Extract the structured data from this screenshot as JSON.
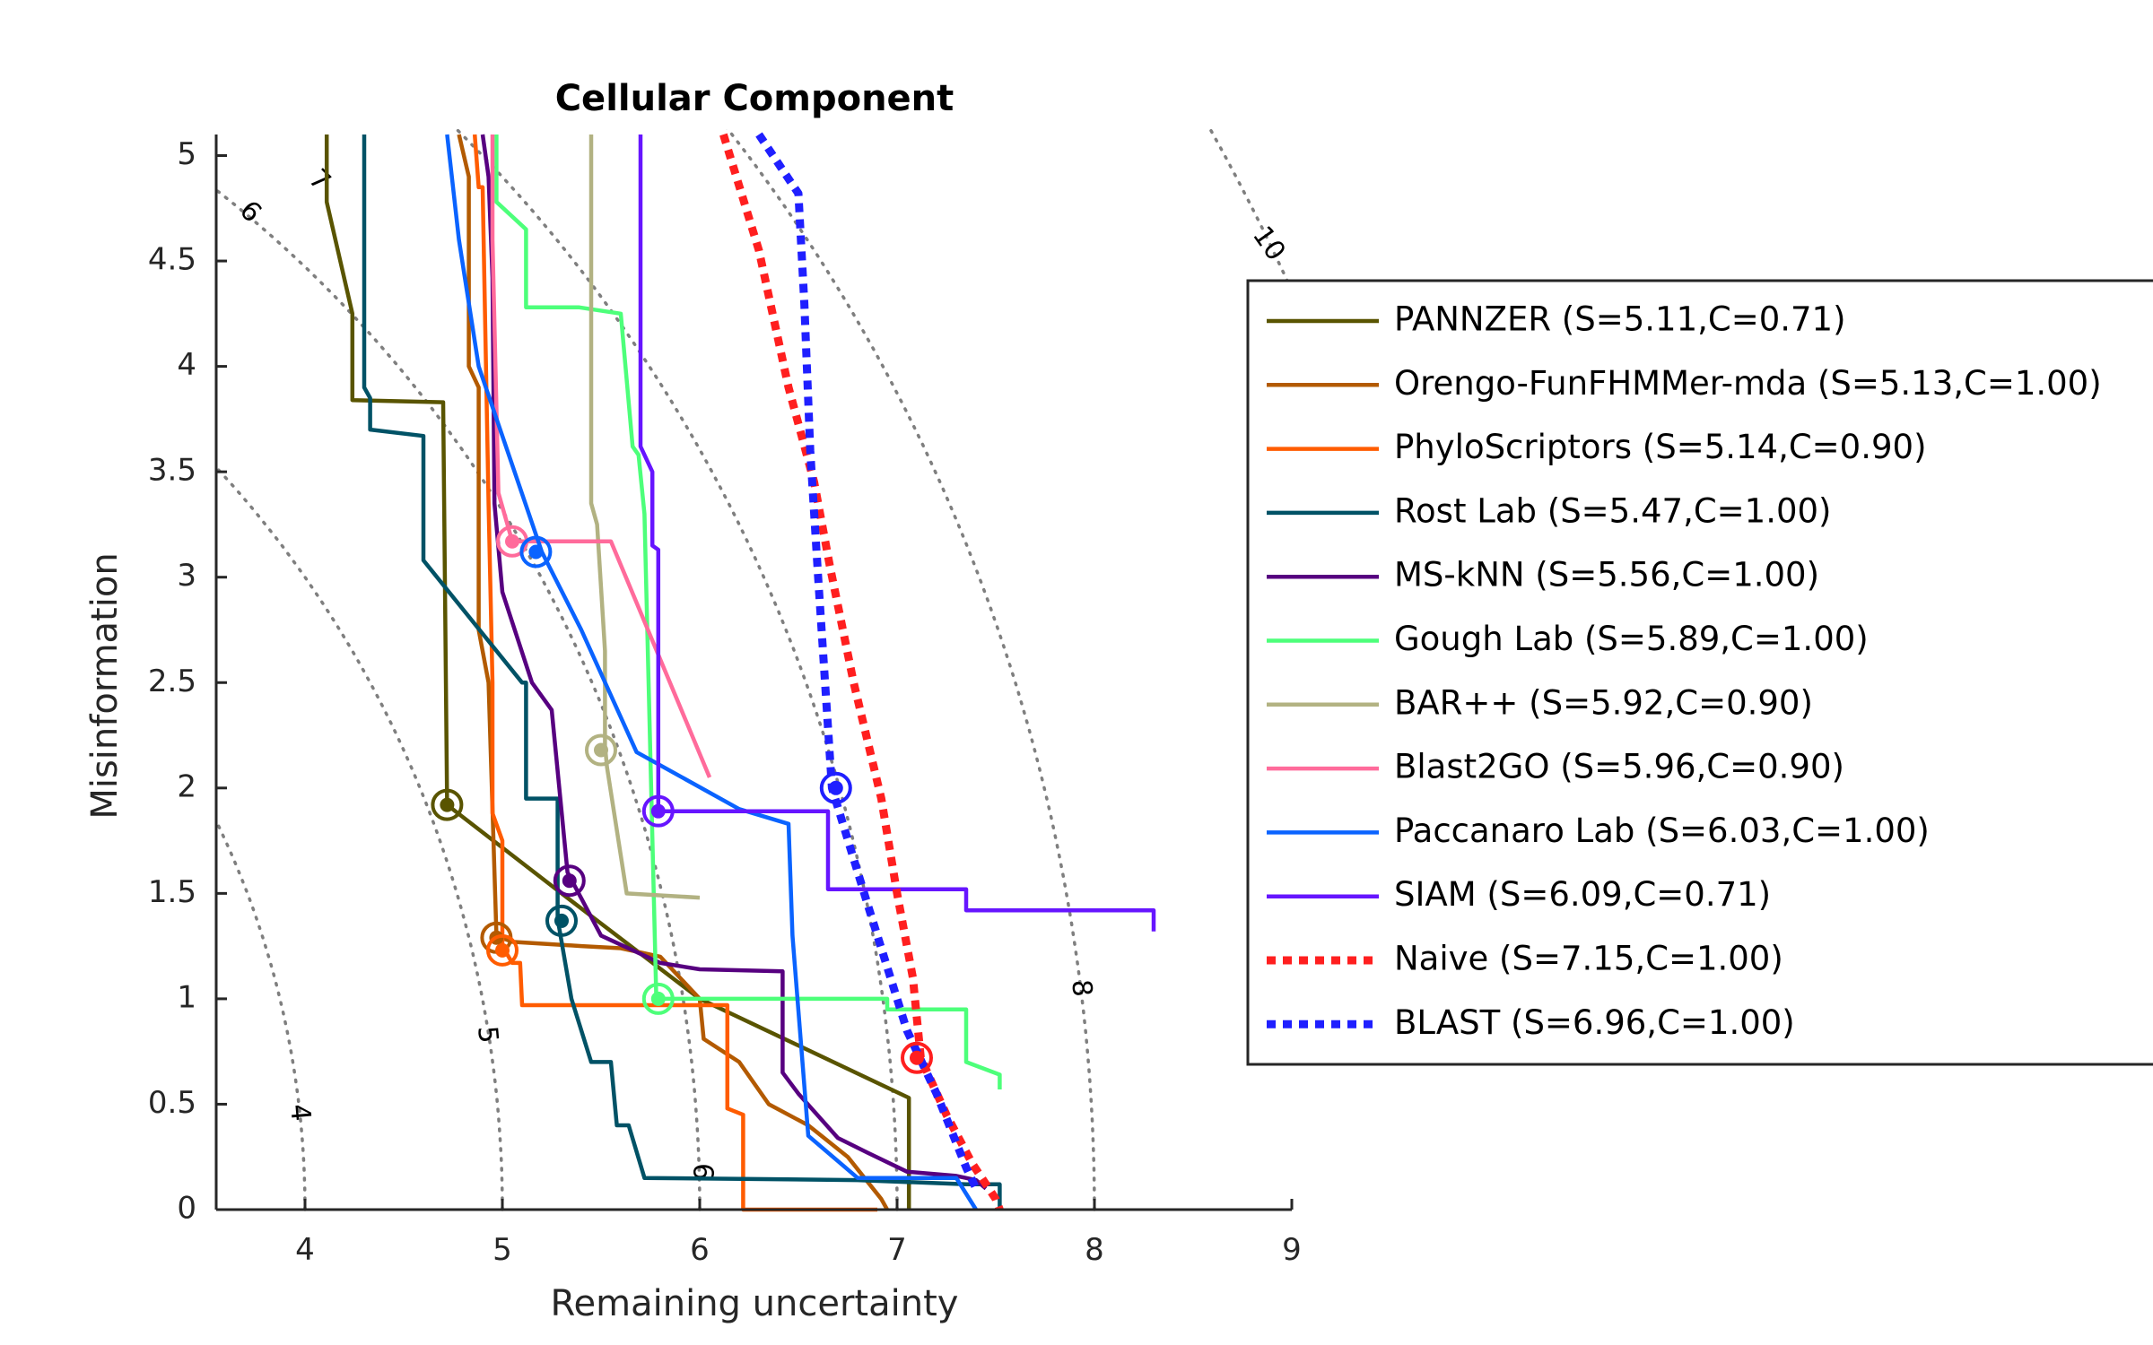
{
  "chart_data": {
    "type": "line",
    "title": "Cellular Component",
    "xlabel": "Remaining uncertainty",
    "ylabel": "Misinformation",
    "xlim": [
      3.55,
      9.0
    ],
    "ylim": [
      0,
      5.1
    ],
    "xticks": [
      4,
      5,
      6,
      7,
      8,
      9
    ],
    "yticks": [
      0,
      0.5,
      1,
      1.5,
      2,
      2.5,
      3,
      3.5,
      4,
      4.5,
      5
    ],
    "xtick_labels": [
      "4",
      "5",
      "6",
      "7",
      "8",
      "9"
    ],
    "ytick_labels": [
      "0",
      "0.5",
      "1",
      "1.5",
      "2",
      "2.5",
      "3",
      "3.5",
      "4",
      "4.5",
      "5"
    ],
    "grid": false,
    "legend_position": "right",
    "contours": [
      {
        "level": 4,
        "label": "4"
      },
      {
        "level": 5,
        "label": "5"
      },
      {
        "level": 6,
        "label": "6"
      },
      {
        "level": 7,
        "label": "7"
      },
      {
        "level": 8,
        "label": "8"
      },
      {
        "level": 10,
        "label": "10"
      }
    ],
    "contour_labels": [
      {
        "label": "6",
        "x": 3.72,
        "y": 4.73,
        "rot": 45
      },
      {
        "label": "7",
        "x": 4.07,
        "y": 4.88,
        "rot": 45
      },
      {
        "label": "10",
        "x": 8.88,
        "y": 4.58,
        "rot": 55
      },
      {
        "label": "8",
        "x": 7.93,
        "y": 1.05,
        "rot": 85
      },
      {
        "label": "5",
        "x": 4.92,
        "y": 0.83,
        "rot": 85
      },
      {
        "label": "4",
        "x": 3.97,
        "y": 0.46,
        "rot": 85
      },
      {
        "label": "6",
        "x": 6.01,
        "y": 0.18,
        "rot": 90
      }
    ],
    "series": [
      {
        "name": "PANNZER (S=5.11,C=0.71)",
        "color": "#595400",
        "style": "solid",
        "points": [
          [
            4.11,
            5.1
          ],
          [
            4.11,
            4.78
          ],
          [
            4.24,
            4.25
          ],
          [
            4.24,
            3.84
          ],
          [
            4.7,
            3.83
          ],
          [
            4.72,
            1.92
          ],
          [
            5.3,
            1.5
          ],
          [
            6.0,
            1.0
          ],
          [
            7.06,
            0.53
          ],
          [
            7.06,
            0
          ]
        ],
        "marker": [
          4.72,
          1.92
        ]
      },
      {
        "name": "Orengo-FunFHMMer-mda (S=5.13,C=1.00)",
        "color": "#b35a00",
        "style": "solid",
        "points": [
          [
            4.78,
            5.1
          ],
          [
            4.83,
            4.9
          ],
          [
            4.83,
            4.0
          ],
          [
            4.88,
            3.9
          ],
          [
            4.88,
            2.75
          ],
          [
            4.93,
            2.5
          ],
          [
            4.97,
            1.3
          ],
          [
            5.05,
            1.27
          ],
          [
            5.4,
            1.25
          ],
          [
            5.6,
            1.24
          ],
          [
            5.8,
            1.2
          ],
          [
            6.0,
            1.0
          ],
          [
            6.02,
            0.81
          ],
          [
            6.2,
            0.7
          ],
          [
            6.35,
            0.5
          ],
          [
            6.55,
            0.4
          ],
          [
            6.75,
            0.25
          ],
          [
            6.92,
            0.05
          ],
          [
            6.95,
            0
          ]
        ],
        "marker": [
          4.97,
          1.29
        ]
      },
      {
        "name": "PhyloScriptors (S=5.14,C=0.90)",
        "color": "#ff5c00",
        "style": "solid",
        "points": [
          [
            4.86,
            5.1
          ],
          [
            4.88,
            4.85
          ],
          [
            4.9,
            4.85
          ],
          [
            4.93,
            3.35
          ],
          [
            4.95,
            2.5
          ],
          [
            4.95,
            1.88
          ],
          [
            5.0,
            1.75
          ],
          [
            5.0,
            1.25
          ],
          [
            5.05,
            1.17
          ],
          [
            5.09,
            1.17
          ],
          [
            5.1,
            0.97
          ],
          [
            6.14,
            0.97
          ],
          [
            6.14,
            0.48
          ],
          [
            6.22,
            0.45
          ],
          [
            6.22,
            0
          ],
          [
            6.9,
            0
          ]
        ],
        "marker": [
          5.0,
          1.23
        ]
      },
      {
        "name": "Rost Lab (S=5.47,C=1.00)",
        "color": "#005266",
        "style": "solid",
        "points": [
          [
            4.3,
            5.1
          ],
          [
            4.3,
            3.9
          ],
          [
            4.33,
            3.85
          ],
          [
            4.33,
            3.7
          ],
          [
            4.6,
            3.67
          ],
          [
            4.6,
            3.08
          ],
          [
            5.1,
            2.5
          ],
          [
            5.12,
            2.5
          ],
          [
            5.12,
            1.95
          ],
          [
            5.28,
            1.95
          ],
          [
            5.28,
            1.38
          ],
          [
            5.35,
            1.0
          ],
          [
            5.45,
            0.7
          ],
          [
            5.55,
            0.7
          ],
          [
            5.58,
            0.4
          ],
          [
            5.64,
            0.4
          ],
          [
            5.72,
            0.15
          ],
          [
            6.8,
            0.14
          ],
          [
            7.35,
            0.12
          ],
          [
            7.52,
            0.12
          ],
          [
            7.52,
            0
          ]
        ],
        "marker": [
          5.3,
          1.37
        ]
      },
      {
        "name": "MS-kNN (S=5.56,C=1.00)",
        "color": "#570080",
        "style": "solid",
        "points": [
          [
            4.9,
            5.1
          ],
          [
            4.93,
            4.9
          ],
          [
            4.95,
            4.42
          ],
          [
            4.96,
            3.35
          ],
          [
            5.0,
            2.93
          ],
          [
            5.15,
            2.5
          ],
          [
            5.25,
            2.37
          ],
          [
            5.33,
            1.6
          ],
          [
            5.5,
            1.3
          ],
          [
            5.8,
            1.17
          ],
          [
            6.0,
            1.14
          ],
          [
            6.42,
            1.13
          ],
          [
            6.42,
            0.65
          ],
          [
            6.5,
            0.55
          ],
          [
            6.7,
            0.34
          ],
          [
            6.85,
            0.27
          ],
          [
            7.05,
            0.18
          ],
          [
            7.3,
            0.16
          ],
          [
            7.4,
            0.14
          ],
          [
            7.45,
            0.1
          ]
        ],
        "marker": [
          5.34,
          1.56
        ]
      },
      {
        "name": "Gough Lab (S=5.89,C=1.00)",
        "color": "#4dff7a",
        "style": "solid",
        "points": [
          [
            4.97,
            5.1
          ],
          [
            4.97,
            4.78
          ],
          [
            5.12,
            4.65
          ],
          [
            5.12,
            4.28
          ],
          [
            5.39,
            4.28
          ],
          [
            5.6,
            4.25
          ],
          [
            5.66,
            3.62
          ],
          [
            5.69,
            3.58
          ],
          [
            5.72,
            3.3
          ],
          [
            5.78,
            1.0
          ],
          [
            5.9,
            1.0
          ],
          [
            6.95,
            1.0
          ],
          [
            6.95,
            0.95
          ],
          [
            7.35,
            0.95
          ],
          [
            7.35,
            0.7
          ],
          [
            7.52,
            0.64
          ],
          [
            7.52,
            0.57
          ]
        ],
        "marker": [
          5.79,
          1.0
        ]
      },
      {
        "name": "BAR++ (S=5.92,C=0.90)",
        "color": "#b2b282",
        "style": "solid",
        "points": [
          [
            5.45,
            5.1
          ],
          [
            5.45,
            3.35
          ],
          [
            5.48,
            3.25
          ],
          [
            5.52,
            2.65
          ],
          [
            5.52,
            2.2
          ],
          [
            5.53,
            2.1
          ],
          [
            5.63,
            1.5
          ],
          [
            6.0,
            1.48
          ]
        ],
        "marker": [
          5.5,
          2.18
        ]
      },
      {
        "name": "Blast2GO (S=5.96,C=0.90)",
        "color": "#ff6b9b",
        "style": "solid",
        "points": [
          [
            4.95,
            5.1
          ],
          [
            4.95,
            4.6
          ],
          [
            4.98,
            3.4
          ],
          [
            5.05,
            3.17
          ],
          [
            5.55,
            3.17
          ],
          [
            6.05,
            2.05
          ]
        ],
        "marker": [
          5.05,
          3.17
        ]
      },
      {
        "name": "Paccanaro Lab (S=6.03,C=1.00)",
        "color": "#0a63ff",
        "style": "solid",
        "points": [
          [
            4.72,
            5.1
          ],
          [
            4.78,
            4.6
          ],
          [
            4.88,
            4.0
          ],
          [
            5.2,
            3.12
          ],
          [
            5.4,
            2.75
          ],
          [
            5.68,
            2.17
          ],
          [
            6.2,
            1.9
          ],
          [
            6.45,
            1.83
          ],
          [
            6.47,
            1.3
          ],
          [
            6.55,
            0.35
          ],
          [
            6.8,
            0.15
          ],
          [
            7.3,
            0.15
          ],
          [
            7.4,
            0
          ]
        ],
        "marker": [
          5.17,
          3.12
        ]
      },
      {
        "name": "SIAM (S=6.09,C=0.71)",
        "color": "#6615ff",
        "style": "solid",
        "points": [
          [
            5.7,
            5.1
          ],
          [
            5.7,
            3.62
          ],
          [
            5.76,
            3.5
          ],
          [
            5.76,
            3.15
          ],
          [
            5.79,
            3.13
          ],
          [
            5.79,
            1.89
          ],
          [
            6.65,
            1.89
          ],
          [
            6.65,
            1.52
          ],
          [
            7.35,
            1.52
          ],
          [
            7.35,
            1.42
          ],
          [
            8.3,
            1.42
          ],
          [
            8.3,
            1.32
          ]
        ],
        "marker": [
          5.79,
          1.89
        ]
      },
      {
        "name": "Naive (S=7.15,C=1.00)",
        "color": "#ff1f1f",
        "style": "dotted",
        "points": [
          [
            6.12,
            5.1
          ],
          [
            6.3,
            4.55
          ],
          [
            6.45,
            3.9
          ],
          [
            6.58,
            3.45
          ],
          [
            6.66,
            3.05
          ],
          [
            6.78,
            2.5
          ],
          [
            6.92,
            1.95
          ],
          [
            7.0,
            1.5
          ],
          [
            7.08,
            1.1
          ],
          [
            7.12,
            0.72
          ],
          [
            7.25,
            0.45
          ],
          [
            7.38,
            0.22
          ],
          [
            7.5,
            0.05
          ],
          [
            7.52,
            0
          ]
        ],
        "marker": [
          7.1,
          0.72
        ]
      },
      {
        "name": "BLAST (S=6.96,C=1.00)",
        "color": "#1f1fff",
        "style": "dotted",
        "points": [
          [
            6.3,
            5.1
          ],
          [
            6.5,
            4.82
          ],
          [
            6.53,
            4.3
          ],
          [
            6.56,
            3.6
          ],
          [
            6.6,
            3.0
          ],
          [
            6.67,
            2.0
          ],
          [
            6.85,
            1.45
          ],
          [
            7.05,
            0.85
          ],
          [
            7.2,
            0.55
          ],
          [
            7.35,
            0.2
          ],
          [
            7.4,
            0.1
          ]
        ],
        "marker": [
          6.69,
          2.0
        ]
      }
    ]
  }
}
